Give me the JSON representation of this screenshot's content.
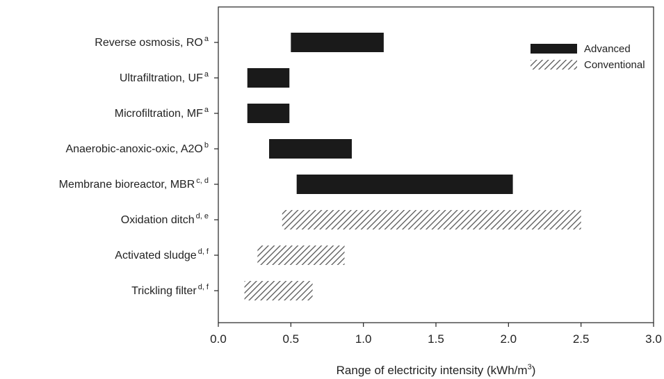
{
  "chart_data": {
    "type": "bar",
    "orientation": "horizontal",
    "xlabel": "Range of electricity intensity (kWh/m",
    "xlabel_sup": "3",
    "xlabel_end": ")",
    "xlim": [
      0.0,
      3.0
    ],
    "x_ticks": [
      "0.0",
      "0.5",
      "1.0",
      "1.5",
      "2.0",
      "2.5",
      "3.0"
    ],
    "x_tick_values": [
      0,
      0.5,
      1.0,
      1.5,
      2.0,
      2.5,
      3.0
    ],
    "grid": false,
    "legend_position": "top-right",
    "legend": [
      {
        "name": "Advanced",
        "pattern": "solid",
        "color": "#1a1a1a"
      },
      {
        "name": "Conventional",
        "pattern": "hatched",
        "color": "#555555"
      }
    ],
    "categories": [
      {
        "label": "Reverse osmosis, RO",
        "sup": "a",
        "min": 0.5,
        "max": 1.14,
        "group": "Advanced"
      },
      {
        "label": "Ultrafiltration, UF",
        "sup": "a",
        "min": 0.2,
        "max": 0.49,
        "group": "Advanced"
      },
      {
        "label": "Microfiltration, MF",
        "sup": "a",
        "min": 0.2,
        "max": 0.49,
        "group": "Advanced"
      },
      {
        "label": "Anaerobic-anoxic-oxic, A2O",
        "sup": "b",
        "min": 0.35,
        "max": 0.92,
        "group": "Advanced"
      },
      {
        "label": "Membrane bioreactor, MBR",
        "sup": "c, d",
        "min": 0.54,
        "max": 2.03,
        "group": "Advanced"
      },
      {
        "label": "Oxidation ditch",
        "sup": "d, e",
        "min": 0.44,
        "max": 2.5,
        "group": "Conventional"
      },
      {
        "label": "Activated sludge",
        "sup": "d, f",
        "min": 0.27,
        "max": 0.87,
        "group": "Conventional"
      },
      {
        "label": "Trickling filter",
        "sup": "d, f",
        "min": 0.18,
        "max": 0.65,
        "group": "Conventional"
      }
    ]
  }
}
